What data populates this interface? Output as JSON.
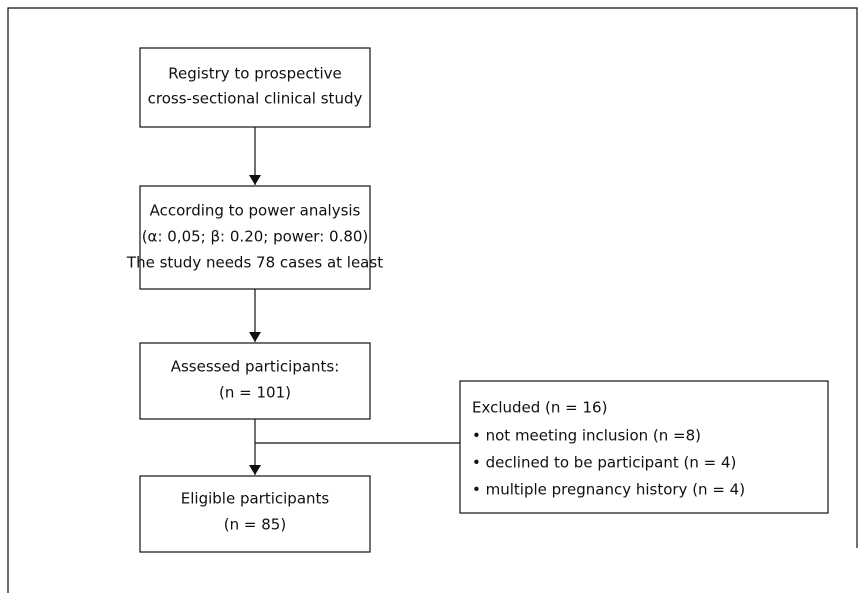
{
  "nodes": [
    {
      "lines": [
        "Registry to prospective",
        "cross-sectional clinical study"
      ]
    },
    {
      "lines": [
        "According to power analysis",
        "(α: 0,05; β: 0.20; power: 0.80)",
        "The study needs 78 cases at least"
      ]
    },
    {
      "lines": [
        "Assessed participants:",
        "(n = 101)"
      ]
    },
    {
      "lines": [
        "Excluded (n = 16)",
        "• not meeting inclusion (n =8)",
        "• declined to be participant (n = 4)",
        "• multiple pregnancy history (n = 4)"
      ]
    },
    {
      "lines": [
        "Eligible participants",
        "(n = 85)"
      ]
    }
  ]
}
